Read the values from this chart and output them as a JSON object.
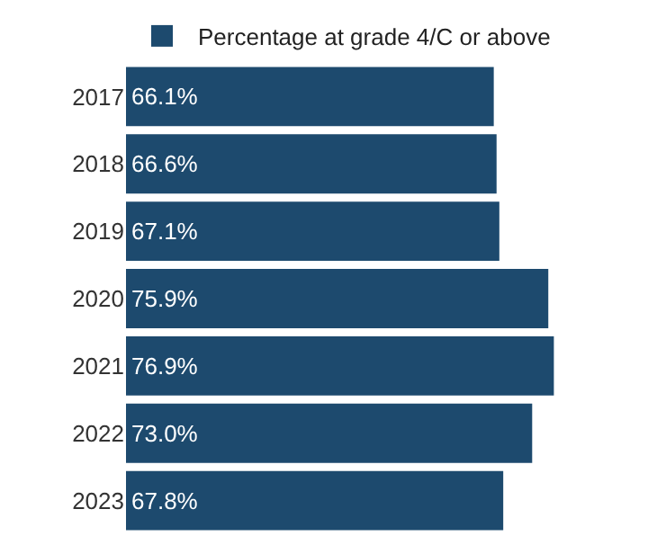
{
  "chart_data": {
    "type": "bar",
    "orientation": "horizontal",
    "categories": [
      "2017",
      "2018",
      "2019",
      "2020",
      "2021",
      "2022",
      "2023"
    ],
    "series": [
      {
        "name": "Percentage at grade 4/C or above",
        "color": "#1d4a6e",
        "values": [
          66.1,
          66.6,
          67.1,
          75.9,
          76.9,
          73.0,
          67.8
        ],
        "value_labels": [
          "66.1%",
          "66.6%",
          "67.1%",
          "75.9%",
          "76.9%",
          "73.0%",
          "67.8%"
        ]
      }
    ],
    "legend": "top left"
  }
}
